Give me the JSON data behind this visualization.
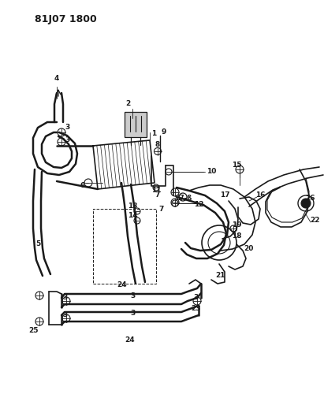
{
  "title": "81J07 1800",
  "bg_color": "#ffffff",
  "line_color": "#1a1a1a",
  "title_fontsize": 9,
  "figsize": [
    4.11,
    5.33
  ],
  "dpi": 100,
  "label_fontsize": 6.5
}
